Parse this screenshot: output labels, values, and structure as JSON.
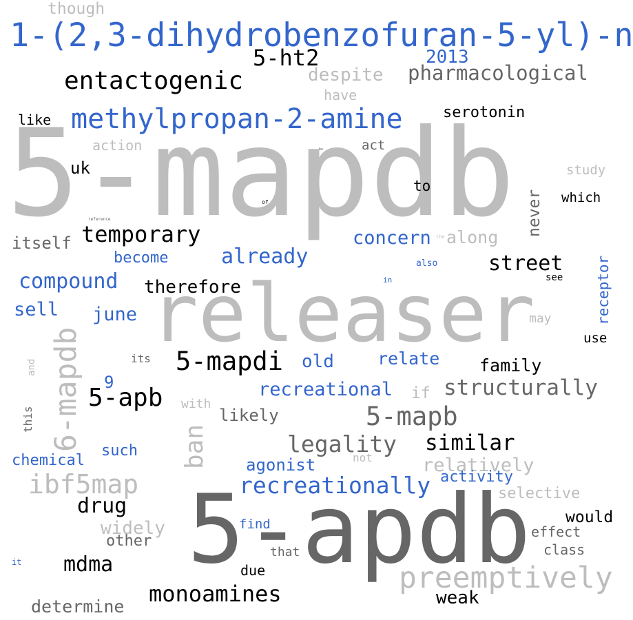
{
  "palette": {
    "blue": "#3366cc",
    "black": "#000000",
    "dark_gray": "#666666",
    "light_gray": "#bdbdbd"
  },
  "words": [
    {
      "text": "5-mapdb",
      "color": "light_gray"
    },
    {
      "text": "releaser",
      "color": "light_gray"
    },
    {
      "text": "5-apdb",
      "color": "dark_gray"
    },
    {
      "text": "1-(2,3-dihydrobenzofuran-5-yl)-n",
      "color": "blue"
    },
    {
      "text": "methylpropan-2-amine",
      "color": "blue"
    },
    {
      "text": "entactogenic",
      "color": "black"
    },
    {
      "text": "5-ht2",
      "color": "black"
    },
    {
      "text": "2013",
      "color": "blue"
    },
    {
      "text": "pharmacological",
      "color": "dark_gray"
    },
    {
      "text": "despite",
      "color": "light_gray"
    },
    {
      "text": "have",
      "color": "light_gray"
    },
    {
      "text": "though",
      "color": "light_gray"
    },
    {
      "text": "serotonin",
      "color": "black"
    },
    {
      "text": "like",
      "color": "black"
    },
    {
      "text": "action",
      "color": "light_gray"
    },
    {
      "text": "act",
      "color": "dark_gray"
    },
    {
      "text": "study",
      "color": "light_gray"
    },
    {
      "text": "uk",
      "color": "black"
    },
    {
      "text": "to",
      "color": "black"
    },
    {
      "text": "which",
      "color": "black"
    },
    {
      "text": "never",
      "color": "dark_gray"
    },
    {
      "text": "temporary",
      "color": "black"
    },
    {
      "text": "itself",
      "color": "dark_gray"
    },
    {
      "text": "concern",
      "color": "blue"
    },
    {
      "text": "along",
      "color": "light_gray"
    },
    {
      "text": "become",
      "color": "blue"
    },
    {
      "text": "already",
      "color": "blue"
    },
    {
      "text": "street",
      "color": "black"
    },
    {
      "text": "also",
      "color": "blue"
    },
    {
      "text": "compound",
      "color": "blue"
    },
    {
      "text": "therefore",
      "color": "black"
    },
    {
      "text": "see",
      "color": "black"
    },
    {
      "text": "in",
      "color": "blue"
    },
    {
      "text": "receptor",
      "color": "blue"
    },
    {
      "text": "sell",
      "color": "blue"
    },
    {
      "text": "june",
      "color": "blue"
    },
    {
      "text": "may",
      "color": "light_gray"
    },
    {
      "text": "use",
      "color": "black"
    },
    {
      "text": "its",
      "color": "dark_gray"
    },
    {
      "text": "5-mapdi",
      "color": "black"
    },
    {
      "text": "old",
      "color": "blue"
    },
    {
      "text": "relate",
      "color": "blue"
    },
    {
      "text": "family",
      "color": "black"
    },
    {
      "text": "6-mapdb",
      "color": "light_gray"
    },
    {
      "text": "and",
      "color": "light_gray"
    },
    {
      "text": "9",
      "color": "blue"
    },
    {
      "text": "5-apb",
      "color": "black"
    },
    {
      "text": "recreational",
      "color": "blue"
    },
    {
      "text": "if",
      "color": "light_gray"
    },
    {
      "text": "structurally",
      "color": "dark_gray"
    },
    {
      "text": "with",
      "color": "light_gray"
    },
    {
      "text": "likely",
      "color": "dark_gray"
    },
    {
      "text": "5-mapb",
      "color": "dark_gray"
    },
    {
      "text": "this",
      "color": "dark_gray"
    },
    {
      "text": "ban",
      "color": "light_gray"
    },
    {
      "text": "legality",
      "color": "dark_gray"
    },
    {
      "text": "similar",
      "color": "black"
    },
    {
      "text": "chemical",
      "color": "blue"
    },
    {
      "text": "such",
      "color": "blue"
    },
    {
      "text": "not",
      "color": "light_gray"
    },
    {
      "text": "agonist",
      "color": "blue"
    },
    {
      "text": "relatively",
      "color": "light_gray"
    },
    {
      "text": "ibf5map",
      "color": "light_gray"
    },
    {
      "text": "activity",
      "color": "blue"
    },
    {
      "text": "recreationally",
      "color": "blue"
    },
    {
      "text": "selective",
      "color": "light_gray"
    },
    {
      "text": "drug",
      "color": "black"
    },
    {
      "text": "would",
      "color": "black"
    },
    {
      "text": "widely",
      "color": "light_gray"
    },
    {
      "text": "find",
      "color": "blue"
    },
    {
      "text": "effect",
      "color": "dark_gray"
    },
    {
      "text": "other",
      "color": "dark_gray"
    },
    {
      "text": "class",
      "color": "dark_gray"
    },
    {
      "text": "that",
      "color": "dark_gray"
    },
    {
      "text": "it",
      "color": "blue"
    },
    {
      "text": "mdma",
      "color": "black"
    },
    {
      "text": "due",
      "color": "black"
    },
    {
      "text": "preemptively",
      "color": "light_gray"
    },
    {
      "text": "monoamines",
      "color": "black"
    },
    {
      "text": "weak",
      "color": "black"
    },
    {
      "text": "determine",
      "color": "dark_gray"
    },
    {
      "text": "of",
      "color": "black"
    },
    {
      "text": "reference",
      "color": "dark_gray"
    },
    {
      "text": "the",
      "color": "light_gray"
    },
    {
      "text": "be",
      "color": "dark_gray"
    }
  ]
}
